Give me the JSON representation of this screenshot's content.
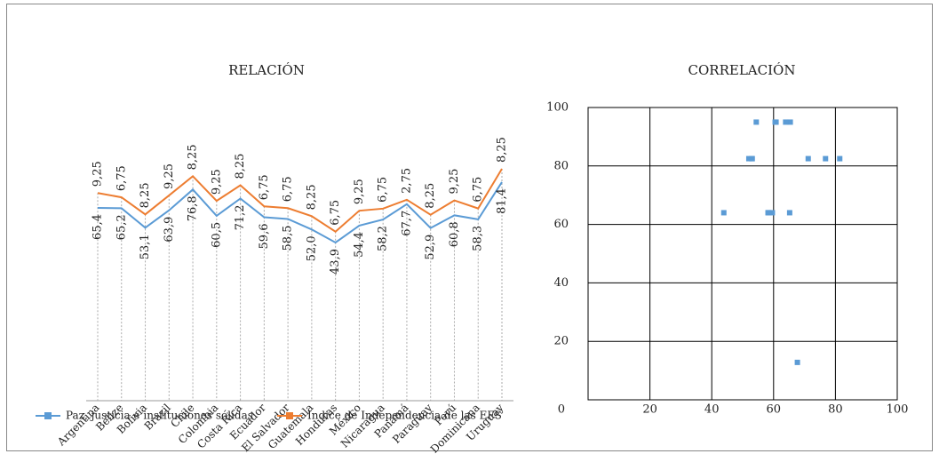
{
  "chart_data": [
    {
      "type": "line",
      "title": "RELACIÓN",
      "stacked": true,
      "categories": [
        "Argentina",
        "Belize",
        "Bolivia",
        "Brazil",
        "Chile",
        "Colombia",
        "Costa Rica",
        "Ecuador",
        "El Salvador",
        "Guatemala",
        "Honduras",
        "México",
        "Nicaragua",
        "Panamá",
        "Paraguay",
        "Perú",
        "Rep. Dominicana",
        "Uruguay"
      ],
      "series": [
        {
          "name": "Paz, justicia e instítuciones sólidas",
          "color": "#5b9bd5",
          "values": [
            65.4,
            65.2,
            53.1,
            63.9,
            76.8,
            60.5,
            71.2,
            59.6,
            58.5,
            52.0,
            43.9,
            54.4,
            58.2,
            67.7,
            52.9,
            60.8,
            58.3,
            81.4
          ],
          "value_labels": [
            "65,4",
            "65,2",
            "53,1",
            "63,9",
            "76,8",
            "60,5",
            "71,2",
            "59,6",
            "58,5",
            "52,0",
            "43,9",
            "54,4",
            "58,2",
            "67,7",
            "52,9",
            "60,8",
            "58,3",
            "81,4"
          ]
        },
        {
          "name": "Indice de Independencia de las EFS",
          "color": "#ed7d31",
          "values": [
            9.25,
            6.75,
            8.25,
            9.25,
            8.25,
            9.25,
            8.25,
            6.75,
            6.75,
            8.25,
            6.75,
            9.25,
            6.75,
            2.75,
            8.25,
            9.25,
            6.75,
            8.25
          ],
          "value_labels": [
            "9,25",
            "6,75",
            "8,25",
            "9,25",
            "8,25",
            "9,25",
            "8,25",
            "6,75",
            "6,75",
            "8,25",
            "6,75",
            "9,25",
            "6,75",
            "2,75",
            "8,25",
            "9,25",
            "6,75",
            "8,25"
          ]
        }
      ],
      "legend": "bottom"
    },
    {
      "type": "scatter",
      "title": "CORRELACIÓN",
      "color": "#5b9bd5",
      "x": [
        65.4,
        65.2,
        53.1,
        63.9,
        76.8,
        60.5,
        71.2,
        59.6,
        58.5,
        52.0,
        43.9,
        54.4,
        58.2,
        67.7,
        52.9,
        60.8,
        58.3,
        81.4
      ],
      "values": [
        95,
        64,
        82.5,
        95,
        82.5,
        95,
        82.5,
        64,
        64,
        82.5,
        64,
        95,
        64,
        12.8,
        82.5,
        95,
        64,
        82.5
      ],
      "xlim": [
        0,
        100
      ],
      "xticks": [
        20,
        40,
        60,
        80,
        100
      ],
      "ylim": [
        0,
        100
      ],
      "yticks": [
        0,
        20,
        40,
        60,
        80,
        100
      ],
      "grid": true
    }
  ]
}
